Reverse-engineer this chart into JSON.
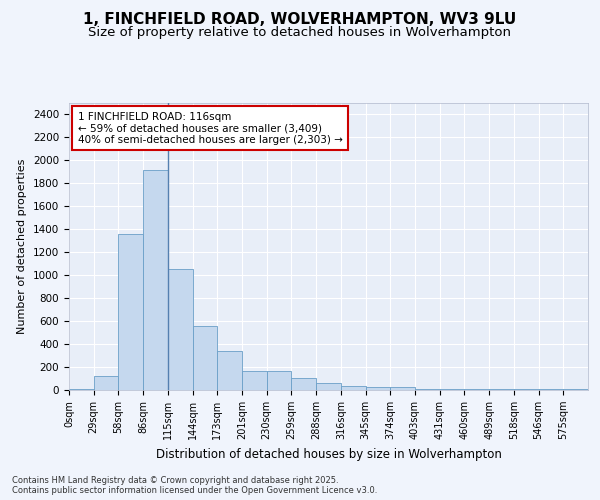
{
  "title_line1": "1, FINCHFIELD ROAD, WOLVERHAMPTON, WV3 9LU",
  "title_line2": "Size of property relative to detached houses in Wolverhampton",
  "xlabel": "Distribution of detached houses by size in Wolverhampton",
  "ylabel": "Number of detached properties",
  "bar_color": "#c5d8ee",
  "bar_edge_color": "#6a9fc8",
  "bg_color": "#e8eef8",
  "fig_bg_color": "#f0f4fc",
  "grid_color": "#ffffff",
  "annotation_box_edgecolor": "#cc0000",
  "annotation_box_facecolor": "#ffffff",
  "vline_color": "#5580b0",
  "annotation_text_line1": "1 FINCHFIELD ROAD: 116sqm",
  "annotation_text_line2": "← 59% of detached houses are smaller (3,409)",
  "annotation_text_line3": "40% of semi-detached houses are larger (2,303) →",
  "bin_labels": [
    "0sqm",
    "29sqm",
    "58sqm",
    "86sqm",
    "115sqm",
    "144sqm",
    "173sqm",
    "201sqm",
    "230sqm",
    "259sqm",
    "288sqm",
    "316sqm",
    "345sqm",
    "374sqm",
    "403sqm",
    "431sqm",
    "460sqm",
    "489sqm",
    "518sqm",
    "546sqm",
    "575sqm"
  ],
  "counts": [
    5,
    125,
    1360,
    1910,
    1055,
    560,
    335,
    165,
    165,
    108,
    60,
    33,
    28,
    22,
    13,
    5,
    5,
    5,
    5,
    5,
    8
  ],
  "ylim": [
    0,
    2500
  ],
  "yticks": [
    0,
    200,
    400,
    600,
    800,
    1000,
    1200,
    1400,
    1600,
    1800,
    2000,
    2200,
    2400
  ],
  "vline_x_index": 4,
  "footer_text": "Contains HM Land Registry data © Crown copyright and database right 2025.\nContains public sector information licensed under the Open Government Licence v3.0."
}
